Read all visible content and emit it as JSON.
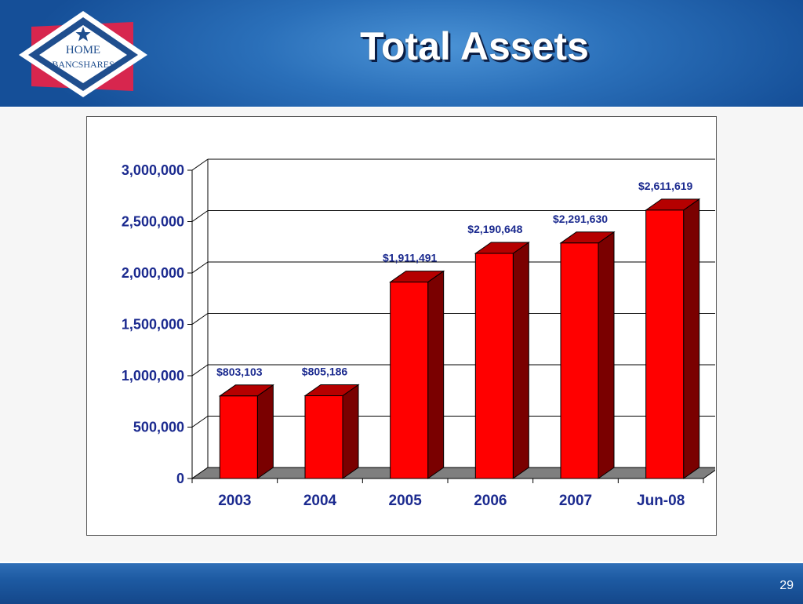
{
  "header": {
    "title": "Total Assets"
  },
  "logo": {
    "line1": "HOME",
    "line2": "BANCSHARES",
    "icon": "star-icon"
  },
  "footer": {
    "page_number": "29"
  },
  "chart_data": {
    "type": "bar",
    "title": "",
    "xlabel": "",
    "ylabel": "",
    "categories": [
      "2003",
      "2004",
      "2005",
      "2006",
      "2007",
      "Jun-08"
    ],
    "values": [
      803103,
      805186,
      1911491,
      2190648,
      2291630,
      2611619
    ],
    "data_labels": [
      "$803,103",
      "$805,186",
      "$1,911,491",
      "$2,190,648",
      "$2,291,630",
      "$2,611,619"
    ],
    "yticks": [
      0,
      500000,
      1000000,
      1500000,
      2000000,
      2500000,
      3000000
    ],
    "ytick_labels": [
      "0",
      "500,000",
      "1,000,000",
      "1,500,000",
      "2,000,000",
      "2,500,000",
      "3,000,000"
    ],
    "ylim": [
      0,
      3000000
    ],
    "grid": true,
    "legend": "none",
    "colors": {
      "bar_front": "#ff0000",
      "bar_side": "#7a0000",
      "bar_top": "#b50000",
      "floor": "#7f7f7f",
      "text": "#1b2a8f"
    }
  }
}
